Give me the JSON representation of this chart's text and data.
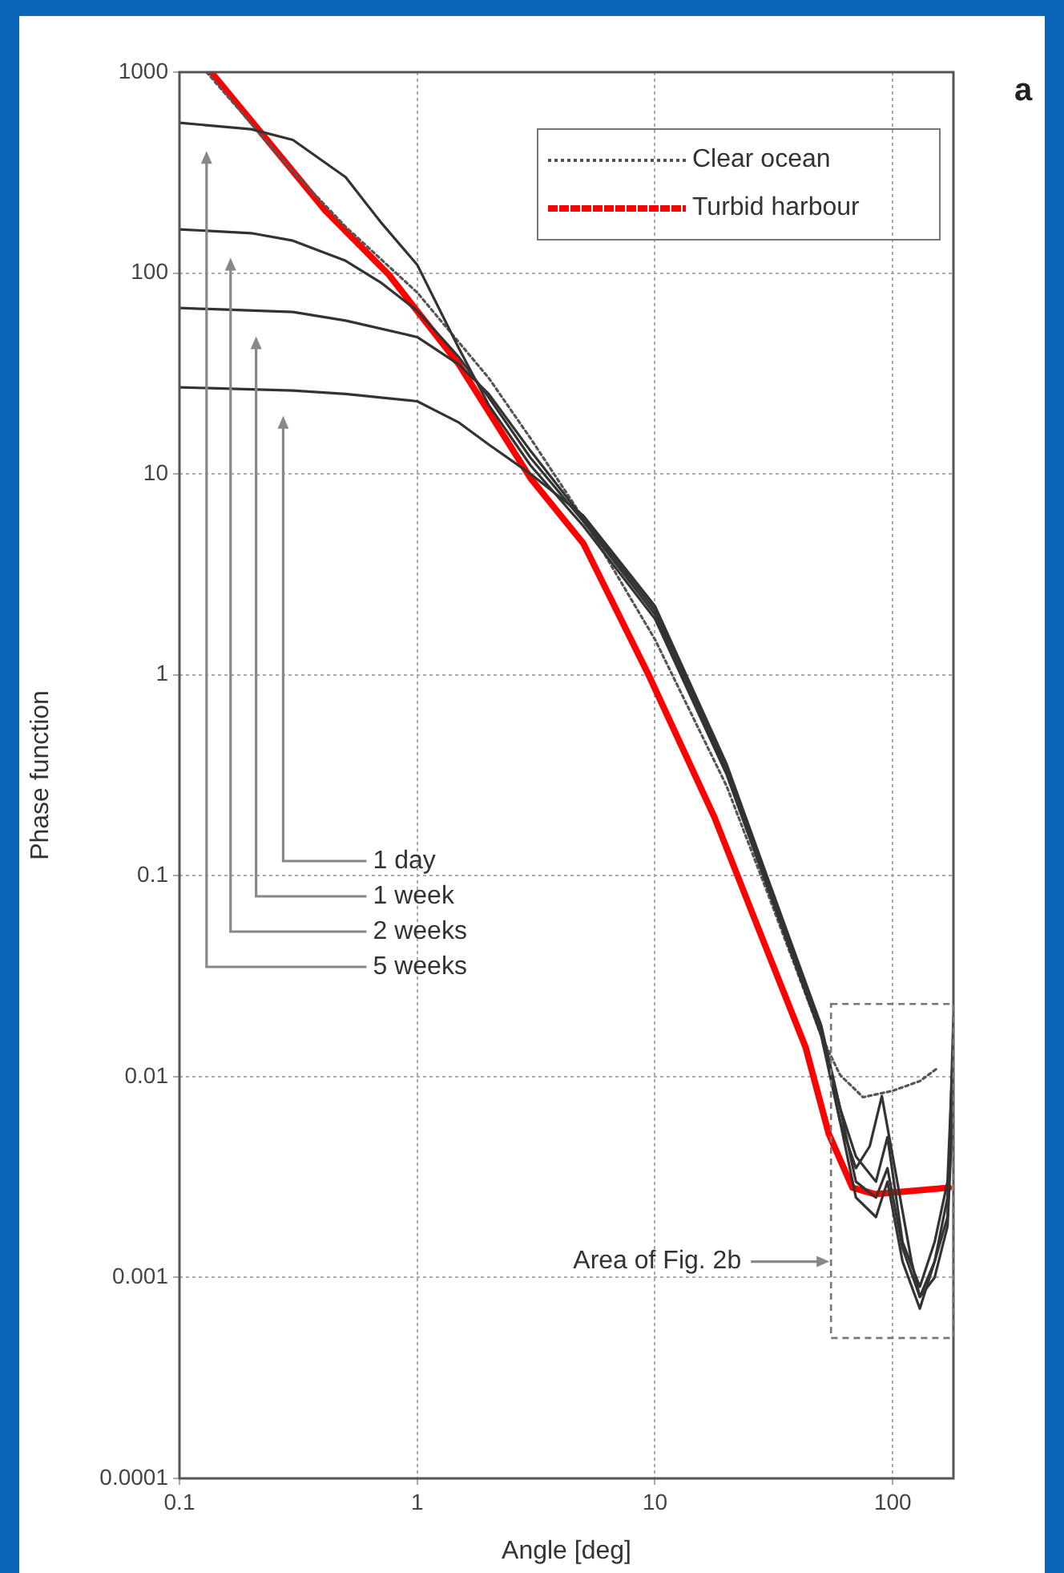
{
  "chart_data": {
    "type": "line",
    "xlabel": "Angle [deg]",
    "ylabel": "Phase function",
    "log": "xy",
    "xlim": [
      0.1,
      180
    ],
    "ylim": [
      0.0001,
      1000
    ],
    "xticks": [
      0.1,
      1,
      10,
      100
    ],
    "yticks": [
      0.0001,
      0.001,
      0.01,
      0.1,
      1,
      10,
      100,
      1000
    ],
    "grid": true,
    "legend": "top right",
    "series": [
      {
        "color": "#333333",
        "x": [
          0.1,
          0.2,
          0.3,
          0.5,
          0.7,
          1,
          1.5,
          2,
          3,
          5,
          10,
          20,
          30,
          50,
          60,
          70,
          80,
          90,
          100,
          120,
          130,
          150,
          170,
          180
        ],
        "values": [
          560,
          520,
          460,
          300,
          180,
          110,
          42,
          22,
          11,
          5.5,
          1.9,
          0.32,
          0.085,
          0.016,
          0.006,
          0.0035,
          0.0045,
          0.008,
          0.004,
          0.0012,
          0.0008,
          0.0012,
          0.002,
          0.02
        ]
      },
      {
        "color": "#333333",
        "x": [
          0.1,
          0.2,
          0.3,
          0.5,
          0.7,
          1,
          1.5,
          2,
          3,
          5,
          10,
          20,
          30,
          50,
          60,
          70,
          85,
          95,
          110,
          130,
          150,
          170,
          180
        ],
        "values": [
          165,
          158,
          145,
          115,
          90,
          65,
          38,
          24,
          12,
          5.8,
          2,
          0.33,
          0.09,
          0.017,
          0.007,
          0.004,
          0.003,
          0.005,
          0.0015,
          0.0009,
          0.0015,
          0.003,
          0.015
        ]
      },
      {
        "color": "#333333",
        "x": [
          0.1,
          0.3,
          0.5,
          1,
          1.5,
          2,
          3,
          5,
          10,
          20,
          30,
          50,
          60,
          70,
          85,
          95,
          110,
          130,
          150,
          170,
          180
        ],
        "values": [
          67,
          64,
          58,
          48,
          35,
          25,
          13,
          6,
          2.1,
          0.34,
          0.09,
          0.017,
          0.006,
          0.0025,
          0.002,
          0.003,
          0.0012,
          0.0007,
          0.0012,
          0.0025,
          0.012
        ]
      },
      {
        "color": "#333333",
        "x": [
          0.1,
          0.3,
          0.5,
          1,
          1.5,
          2,
          3,
          5,
          10,
          20,
          30,
          50,
          60,
          70,
          85,
          95,
          110,
          130,
          150,
          170,
          180
        ],
        "values": [
          27,
          26,
          25,
          23,
          18,
          14,
          10,
          6.2,
          2.2,
          0.36,
          0.095,
          0.018,
          0.007,
          0.003,
          0.0025,
          0.0035,
          0.0014,
          0.0008,
          0.001,
          0.0018,
          0.008
        ]
      },
      {
        "name": "Clear ocean",
        "color": "#555555",
        "line_style": "dotted",
        "x": [
          0.13,
          0.3,
          0.5,
          1,
          2,
          3,
          5,
          10,
          20,
          30,
          50,
          60,
          75,
          100,
          130,
          154
        ],
        "values": [
          1000,
          320,
          170,
          80,
          30,
          15,
          6,
          1.5,
          0.28,
          0.08,
          0.016,
          0.0102,
          0.0079,
          0.0085,
          0.0095,
          0.011
        ]
      },
      {
        "name": "Turbid harbour",
        "color": "#ff0000",
        "x": [
          0.136,
          0.41,
          0.76,
          1.5,
          3,
          5,
          9.4,
          17.8,
          27.5,
          43,
          53.8,
          67.7,
          84,
          172
        ],
        "values": [
          1000,
          205,
          98,
          35,
          9.5,
          4.5,
          1,
          0.195,
          0.053,
          0.014,
          0.0052,
          0.0028,
          0.0026,
          0.0028
        ]
      }
    ],
    "annotations": [
      "1 day",
      "1 week",
      "2 weeks",
      "5 weeks",
      "Area of Fig. 2b",
      "a"
    ]
  }
}
